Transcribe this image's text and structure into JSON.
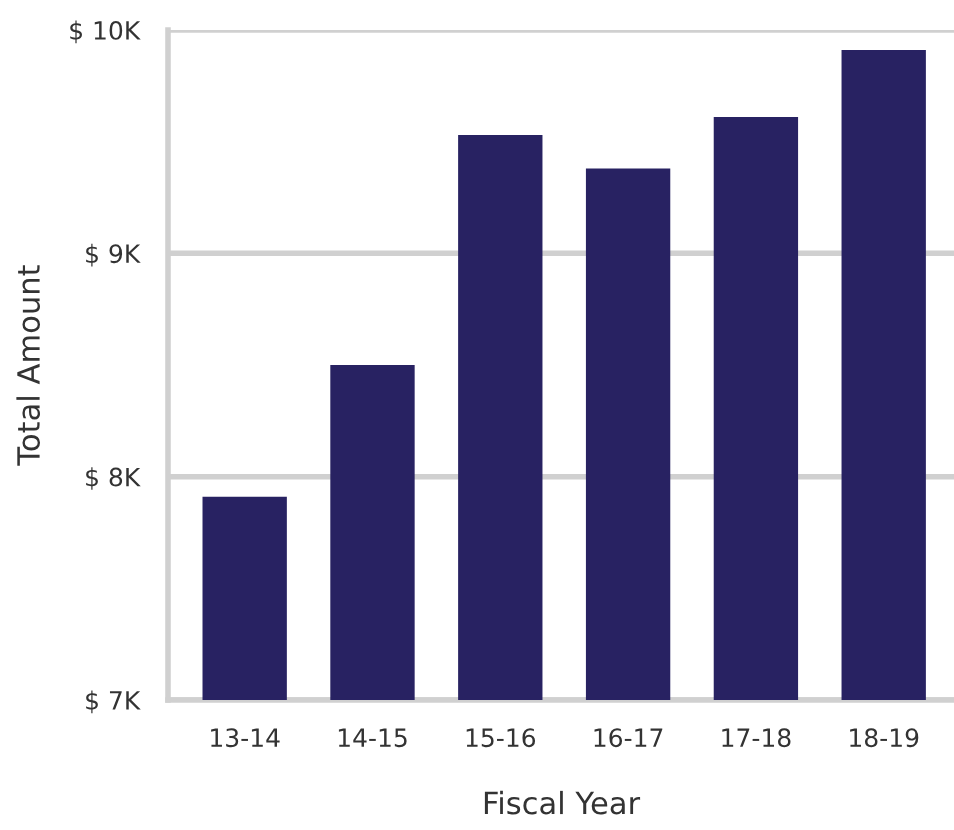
{
  "chart_data": {
    "type": "bar",
    "xlabel": "Fiscal Year",
    "ylabel": "Total Amount",
    "categories": [
      "13-14",
      "14-15",
      "15-16",
      "16-17",
      "17-18",
      "18-19"
    ],
    "values": [
      7910,
      8500,
      9530,
      9380,
      9610,
      9910
    ],
    "color": "#282262",
    "ylim": [
      7000,
      10000
    ],
    "yticks": [
      {
        "value": 7000,
        "label": "$ 7K"
      },
      {
        "value": 8000,
        "label": "$ 8K"
      },
      {
        "value": 9000,
        "label": "$ 9K"
      },
      {
        "value": 10000,
        "label": "$ 10K"
      }
    ],
    "grid": "y"
  }
}
